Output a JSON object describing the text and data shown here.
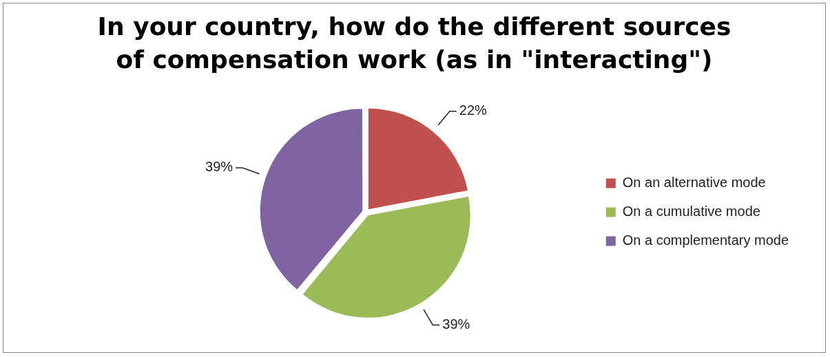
{
  "chart_data": {
    "type": "pie",
    "title": "In your country, how do the different sources of compensation work (as in \"interacting\")",
    "categories": [
      "On an alternative mode",
      "On a cumulative mode",
      "On a complementary mode"
    ],
    "values": [
      22,
      39,
      39
    ],
    "colors": [
      "#c0504d",
      "#9bbb59",
      "#8064a2"
    ],
    "value_labels": [
      "22%",
      "39%",
      "39%"
    ],
    "legend": "right"
  }
}
